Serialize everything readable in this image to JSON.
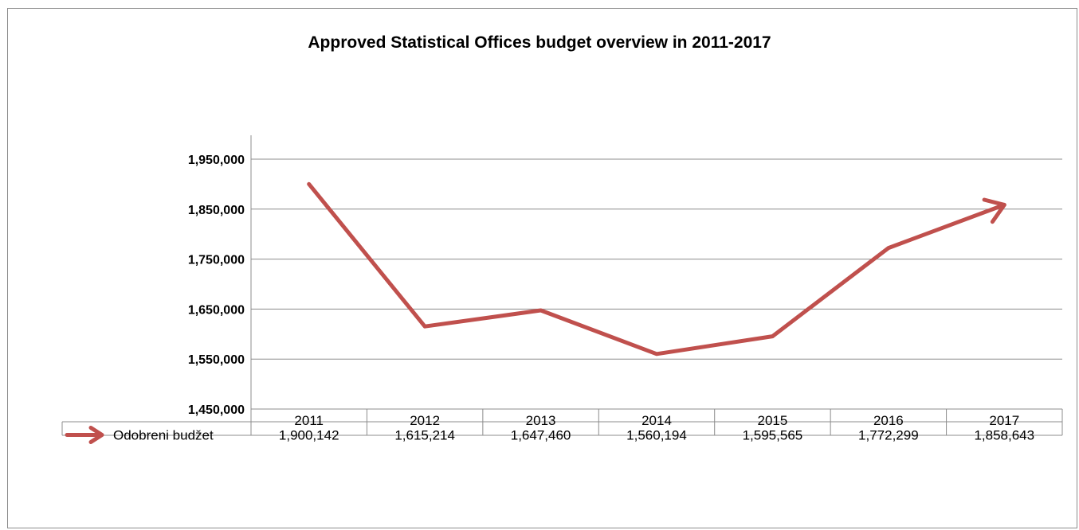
{
  "chart_data": {
    "type": "line",
    "title": "Approved Statistical Offices budget overview in 2011-2017",
    "categories": [
      "2011",
      "2012",
      "2013",
      "2014",
      "2015",
      "2016",
      "2017"
    ],
    "series": [
      {
        "name": "Odobreni budžet",
        "values": [
          1900142,
          1615214,
          1647460,
          1560194,
          1595565,
          1772299,
          1858643
        ],
        "value_labels": [
          "1,900,142",
          "1,615,214",
          "1,647,460",
          "1,560,194",
          "1,595,565",
          "1,772,299",
          "1,858,643"
        ],
        "color": "#c0504d",
        "end_marker": "arrow"
      }
    ],
    "ylim": [
      1450000,
      1950000
    ],
    "yticks": [
      1450000,
      1550000,
      1650000,
      1750000,
      1850000,
      1950000
    ],
    "ytick_labels": [
      "1,450,000",
      "1,550,000",
      "1,650,000",
      "1,750,000",
      "1,850,000",
      "1,950,000"
    ],
    "grid": true,
    "legend": "data-table-left",
    "xlabel": "",
    "ylabel": ""
  }
}
